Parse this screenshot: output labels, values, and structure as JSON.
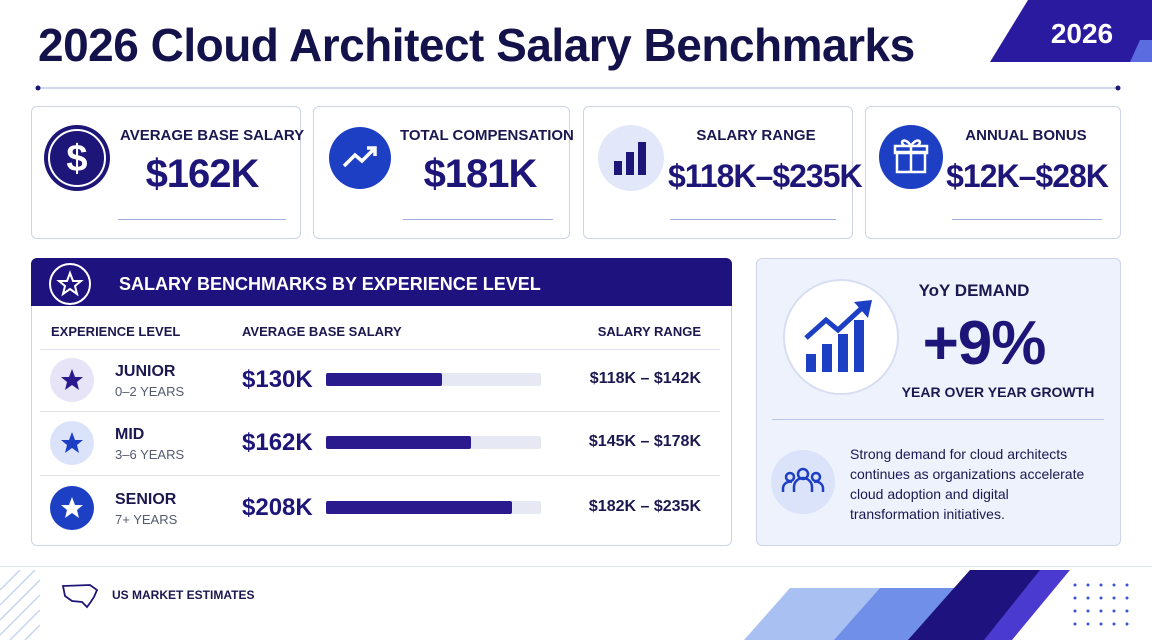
{
  "header": {
    "title": "2026 Cloud Architect Salary Benchmarks",
    "badge": "2026"
  },
  "kpis": [
    {
      "label": "AVERAGE BASE SALARY",
      "value": "$162K"
    },
    {
      "label": "TOTAL COMPENSATION",
      "value": "$181K"
    },
    {
      "label": "SALARY RANGE",
      "value": "$118K–$235K"
    },
    {
      "label": "ANNUAL BONUS",
      "value": "$12K–$28K"
    }
  ],
  "table": {
    "title": "SALARY BENCHMARKS BY EXPERIENCE LEVEL",
    "columns": [
      "EXPERIENCE LEVEL",
      "AVERAGE BASE SALARY",
      "SALARY RANGE"
    ],
    "xlim": [
      0,
      240
    ],
    "rows": [
      {
        "level": "JUNIOR",
        "years": "0–2 YEARS",
        "salary": {
          "value": 130,
          "label": "$130K"
        },
        "range": "$118K – $142K"
      },
      {
        "level": "MID",
        "years": "3–6 YEARS",
        "salary": {
          "value": 162,
          "label": "$162K"
        },
        "range": "$145K – $178K"
      },
      {
        "level": "SENIOR",
        "years": "7+ YEARS",
        "salary": {
          "value": 208,
          "label": "$208K"
        },
        "range": "$182K – $235K"
      }
    ]
  },
  "demand": {
    "title": "YoY DEMAND",
    "value": "+9%",
    "subtitle": "YEAR OVER YEAR GROWTH",
    "note": "Strong demand for cloud architects continues as organizations accelerate cloud adoption and digital transformation initiatives."
  },
  "footer": {
    "source": "US MARKET ESTIMATES"
  }
}
